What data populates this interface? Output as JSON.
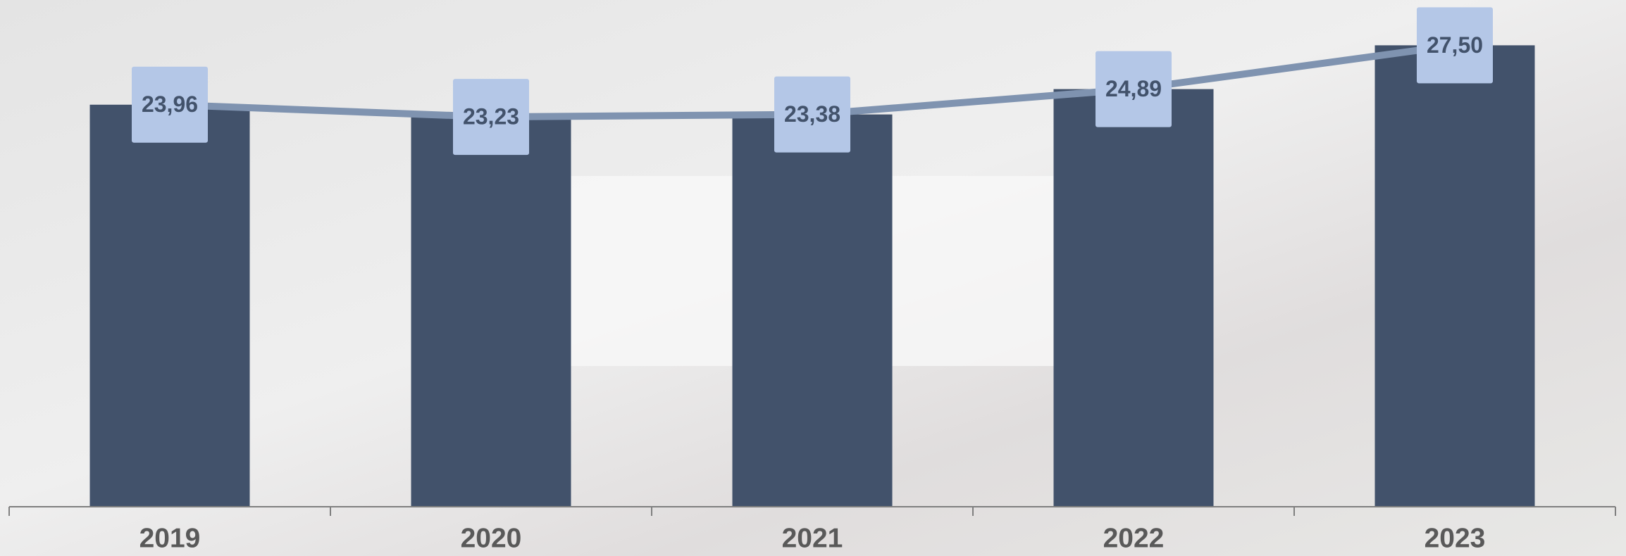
{
  "chart_data": {
    "type": "bar",
    "categories": [
      "2019",
      "2020",
      "2021",
      "2022",
      "2023"
    ],
    "ylim": [
      0,
      30.2
    ],
    "series": [
      {
        "type": "bar",
        "color": "#42526b",
        "values": [
          23.96,
          23.23,
          23.38,
          24.89,
          27.5
        ]
      },
      {
        "type": "line",
        "color": "#7f93b0",
        "values": [
          23.96,
          23.23,
          23.38,
          24.89,
          27.5
        ],
        "value_labels": [
          "23,96",
          "23,23",
          "23,38",
          "24,89",
          "27,50"
        ],
        "label_color": "#b4c7e7"
      }
    ]
  }
}
